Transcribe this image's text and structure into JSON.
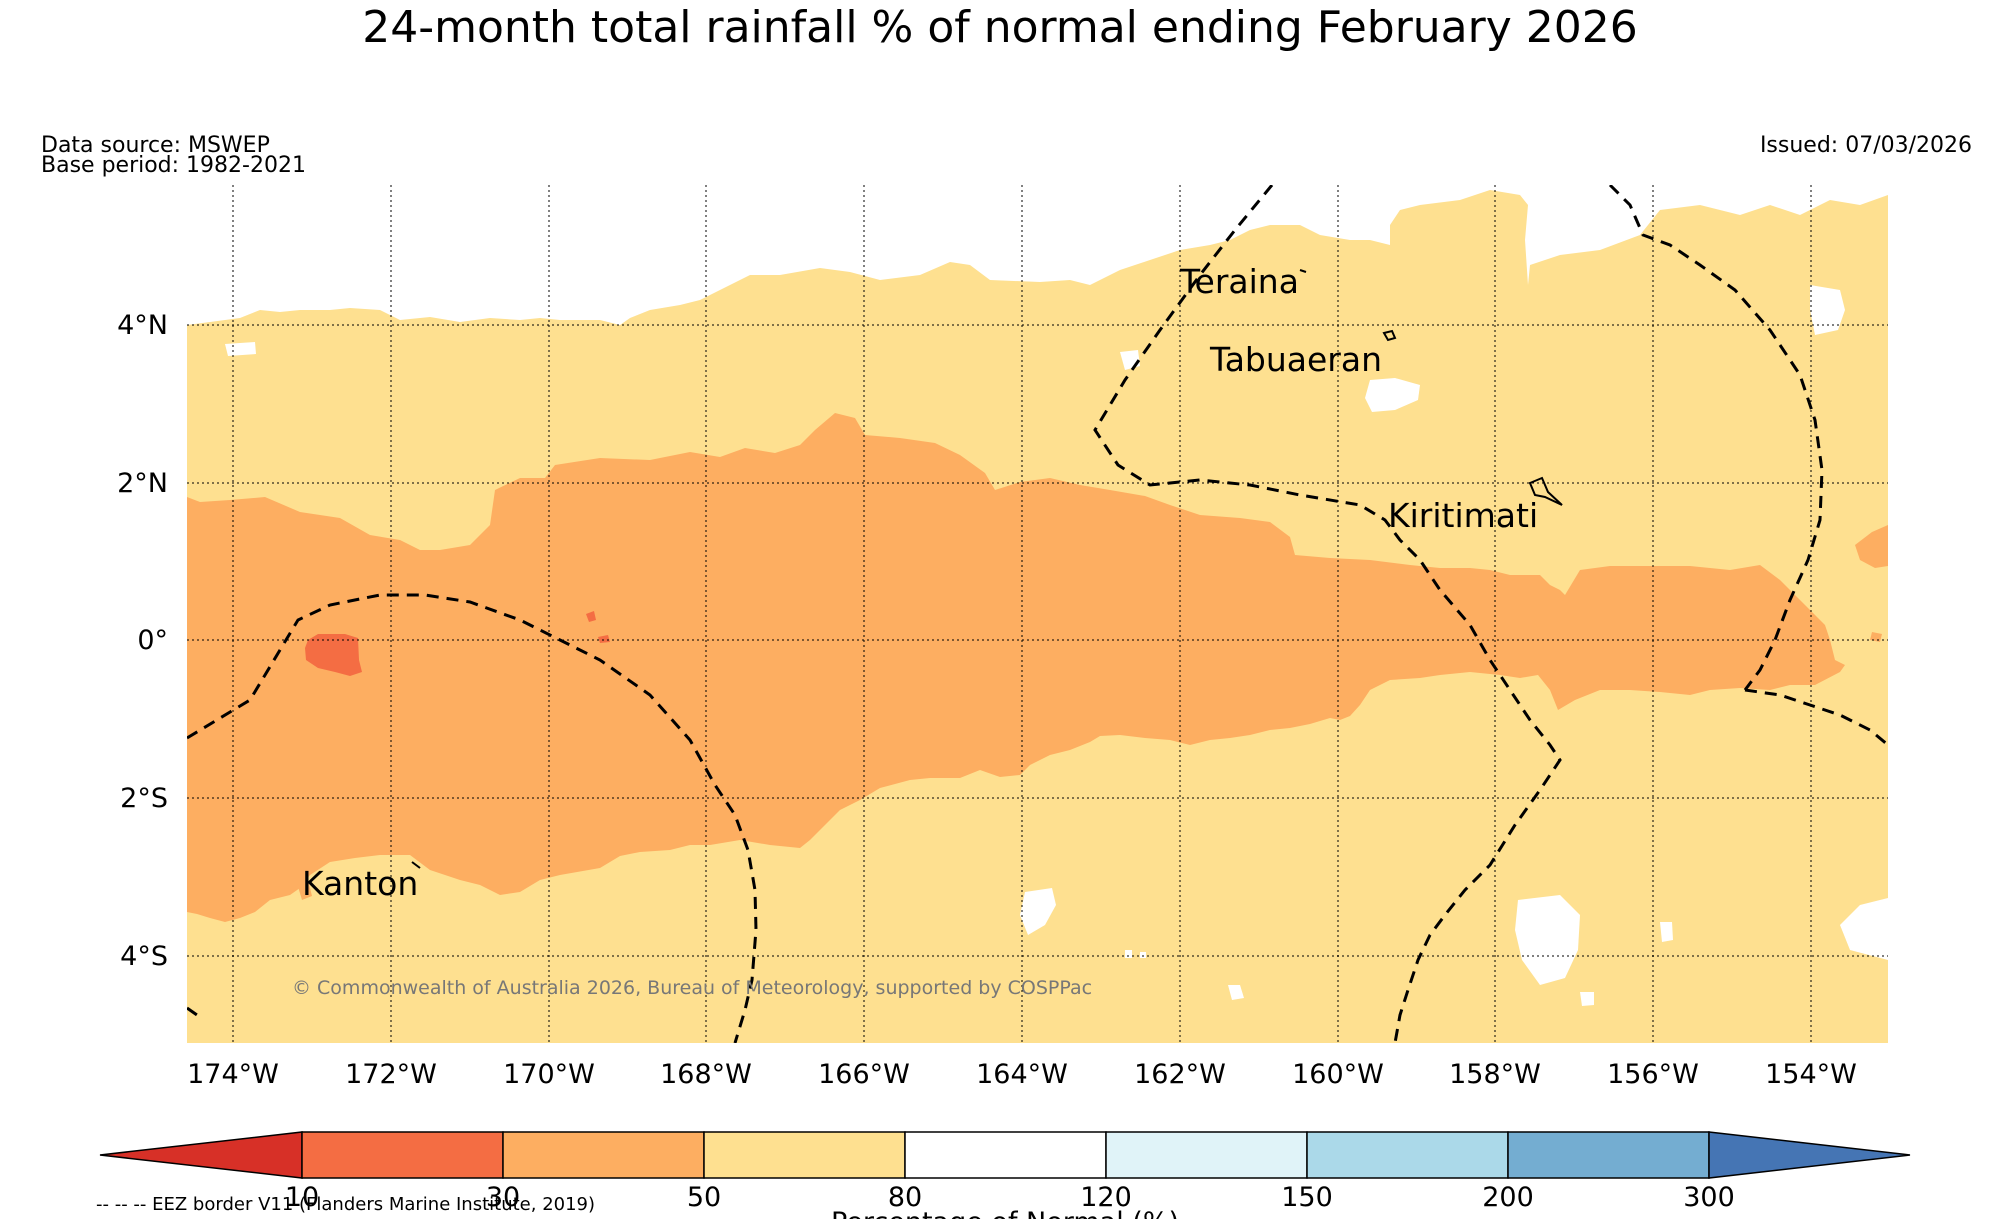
{
  "title": "24-month total rainfall % of normal ending February 2026",
  "data_source": "Data source: MSWEP",
  "base_period": "Base period: 1982-2021",
  "issued": "Issued: 07/03/2026",
  "copyright": "© Commonwealth of Australia 2026, Bureau of Meteorology, supported by COSPPac",
  "eez_note": "-- -- -- EEZ border V11 (Flanders Marine Institute, 2019)",
  "map": {
    "lon_range": [
      -174.6,
      -153
    ],
    "lat_range": [
      -5.1,
      5.8
    ],
    "lat_ticks": [
      "4°N",
      "2°N",
      "0°",
      "2°S",
      "4°S"
    ],
    "lon_ticks": [
      "174°W",
      "172°W",
      "170°W",
      "168°W",
      "166°W",
      "164°W",
      "162°W",
      "160°W",
      "158°W",
      "156°W",
      "154°W"
    ],
    "places": [
      "Teraina",
      "Tabuaeran",
      "Kiritimati",
      "Kanton"
    ],
    "dominant_category": "50-80%",
    "equatorial_band_category": "30-50%",
    "small_patch_category": "10-30%"
  },
  "colorbar": {
    "label": "Percentage of Normal (%)",
    "ticks": [
      "10",
      "30",
      "50",
      "80",
      "120",
      "150",
      "200",
      "300"
    ],
    "colors": [
      "#d73027",
      "#f46d43",
      "#fdae61",
      "#fee090",
      "#ffffff",
      "#e0f3f8",
      "#abd9e9",
      "#74add1",
      "#4575b4"
    ]
  }
}
